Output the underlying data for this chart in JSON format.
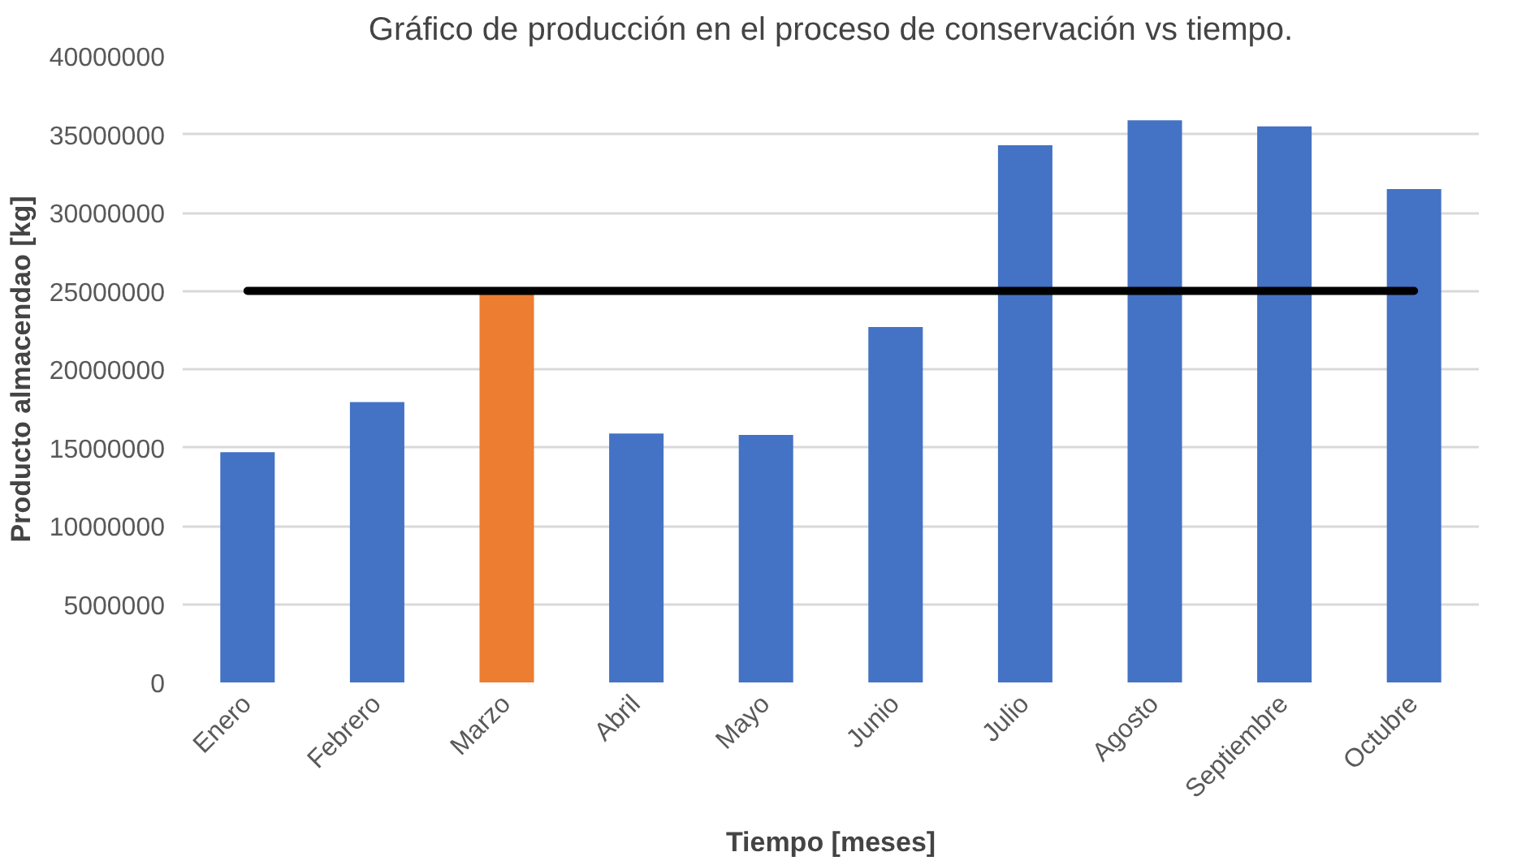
{
  "chart_data": {
    "type": "bar",
    "title": "Gráfico de producción en el proceso de conservación vs tiempo.",
    "xlabel": "Tiempo [meses]",
    "ylabel": "Producto almacendao [kg]",
    "categories": [
      "Enero",
      "Febrero",
      "Marzo",
      "Abril",
      "Mayo",
      "Junio",
      "Julio",
      "Agosto",
      "Septiembre",
      "Octubre"
    ],
    "series": [
      {
        "colors": [
          "#4472c4",
          "#4472c4",
          "#ed7d31",
          "#4472c4",
          "#4472c4",
          "#4472c4",
          "#4472c4",
          "#4472c4",
          "#4472c4",
          "#4472c4"
        ],
        "values": [
          14700000,
          17900000,
          24800000,
          15900000,
          15800000,
          22700000,
          34300000,
          35900000,
          35500000,
          31500000
        ]
      },
      {
        "type": "line",
        "color": "#000000",
        "values": [
          25000000,
          25000000,
          25000000,
          25000000,
          25000000,
          25000000,
          25000000,
          25000000,
          25000000,
          25000000
        ]
      }
    ],
    "ylim": [
      0,
      40000000
    ],
    "yticks": [
      0,
      5000000,
      10000000,
      15000000,
      20000000,
      25000000,
      30000000,
      35000000,
      40000000
    ],
    "grid": "y"
  }
}
